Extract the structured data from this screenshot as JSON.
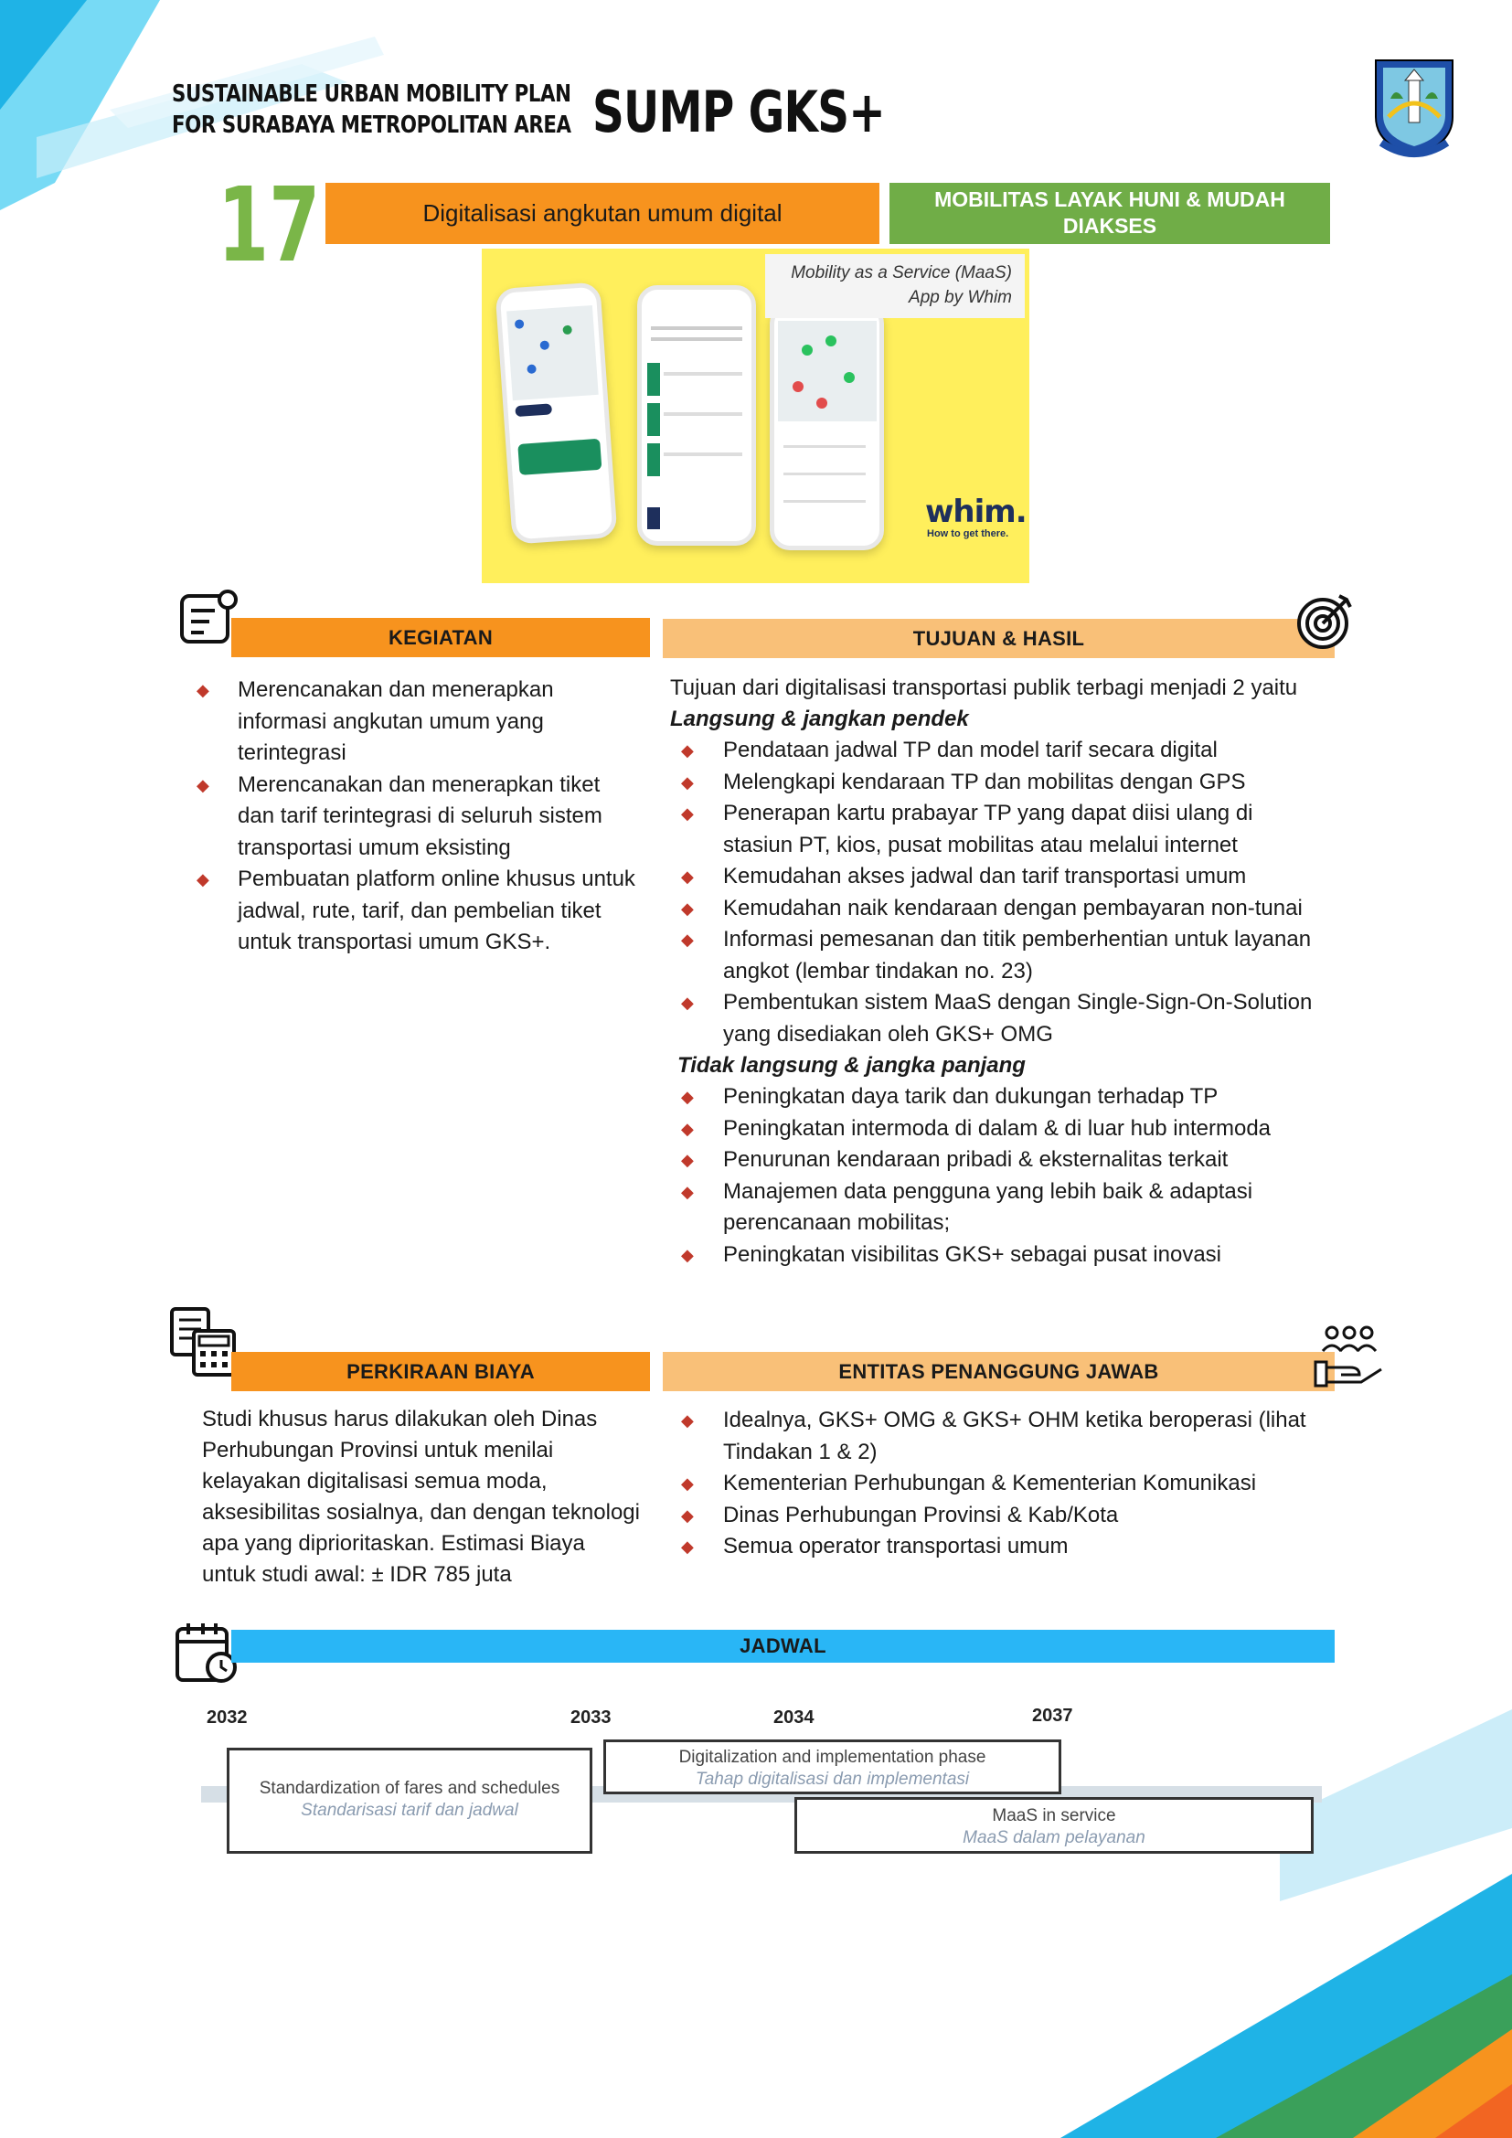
{
  "header": {
    "line1": "SUSTAINABLE URBAN MOBILITY PLAN",
    "line2": "FOR SURABAYA METROPOLITAN AREA",
    "big_title": "SUMP GKS+"
  },
  "action": {
    "number": "17",
    "title": "Digitalisasi angkutan umum digital",
    "category": "MOBILITAS LAYAK HUNI & MUDAH DIAKSES"
  },
  "image": {
    "caption_line1": "Mobility as a Service (MaaS)",
    "caption_line2": "App by Whim",
    "brand": "whim.",
    "tagline": "How to get there."
  },
  "kegiatan": {
    "heading": "KEGIATAN",
    "items": [
      "Merencanakan dan menerapkan informasi angkutan umum yang terintegrasi",
      "Merencanakan dan menerapkan tiket dan tarif terintegrasi di seluruh sistem transportasi umum eksisting",
      "Pembuatan platform online khusus untuk jadwal, rute, tarif, dan pembelian tiket untuk transportasi umum GKS+."
    ]
  },
  "tujuan": {
    "heading": "TUJUAN & HASIL",
    "intro": "Tujuan dari digitalisasi transportasi publik terbagi menjadi 2 yaitu",
    "short_title": "Langsung & jangkan pendek",
    "short_items": [
      "Pendataan jadwal TP dan model tarif secara digital",
      "Melengkapi kendaraan TP dan mobilitas dengan GPS",
      "Penerapan kartu prabayar TP yang dapat diisi ulang di stasiun PT, kios, pusat mobilitas atau melalui internet",
      "Kemudahan akses jadwal dan tarif transportasi umum",
      "Kemudahan naik kendaraan dengan pembayaran non-tunai",
      "Informasi pemesanan dan titik pemberhentian untuk layanan angkot (lembar tindakan no. 23)",
      "Pembentukan sistem MaaS dengan Single-Sign-On-Solution yang disediakan oleh GKS+ OMG"
    ],
    "long_title": "Tidak langsung & jangka panjang",
    "long_items": [
      "Peningkatan daya tarik dan dukungan terhadap TP",
      "Peningkatan intermoda di dalam & di luar hub intermoda",
      "Penurunan kendaraan pribadi & eksternalitas terkait",
      "Manajemen data pengguna yang lebih baik & adaptasi perencanaan mobilitas;",
      "Peningkatan visibilitas GKS+ sebagai pusat inovasi"
    ]
  },
  "biaya": {
    "heading": "PERKIRAAN BIAYA",
    "text": "Studi khusus harus dilakukan oleh Dinas Perhubungan Provinsi untuk menilai kelayakan digitalisasi semua moda, aksesibilitas sosialnya, dan dengan teknologi apa yang diprioritaskan. Estimasi Biaya untuk studi awal: ± IDR 785 juta"
  },
  "entitas": {
    "heading": "ENTITAS PENANGGUNG JAWAB",
    "items": [
      "Idealnya, GKS+ OMG & GKS+ OHM ketika beroperasi (lihat Tindakan 1 & 2)",
      "Kementerian Perhubungan & Kementerian Komunikasi",
      "Dinas Perhubungan Provinsi & Kab/Kota",
      "Semua operator transportasi umum"
    ]
  },
  "jadwal": {
    "heading": "JADWAL",
    "years": [
      "2032",
      "2033",
      "2034",
      "2037"
    ],
    "phases": [
      {
        "en": "Standardization of fares and schedules",
        "id": "Standarisasi tarif dan jadwal"
      },
      {
        "en": "Digitalization and implementation phase",
        "id": "Tahap digitalisasi dan implementasi"
      },
      {
        "en": "MaaS in service",
        "id": "MaaS dalam pelayanan"
      }
    ]
  },
  "colors": {
    "orange": "#f7931e",
    "light_orange": "#f9c078",
    "green": "#70ad47",
    "blue": "#29b6f6",
    "bullet": "#c0392b"
  }
}
